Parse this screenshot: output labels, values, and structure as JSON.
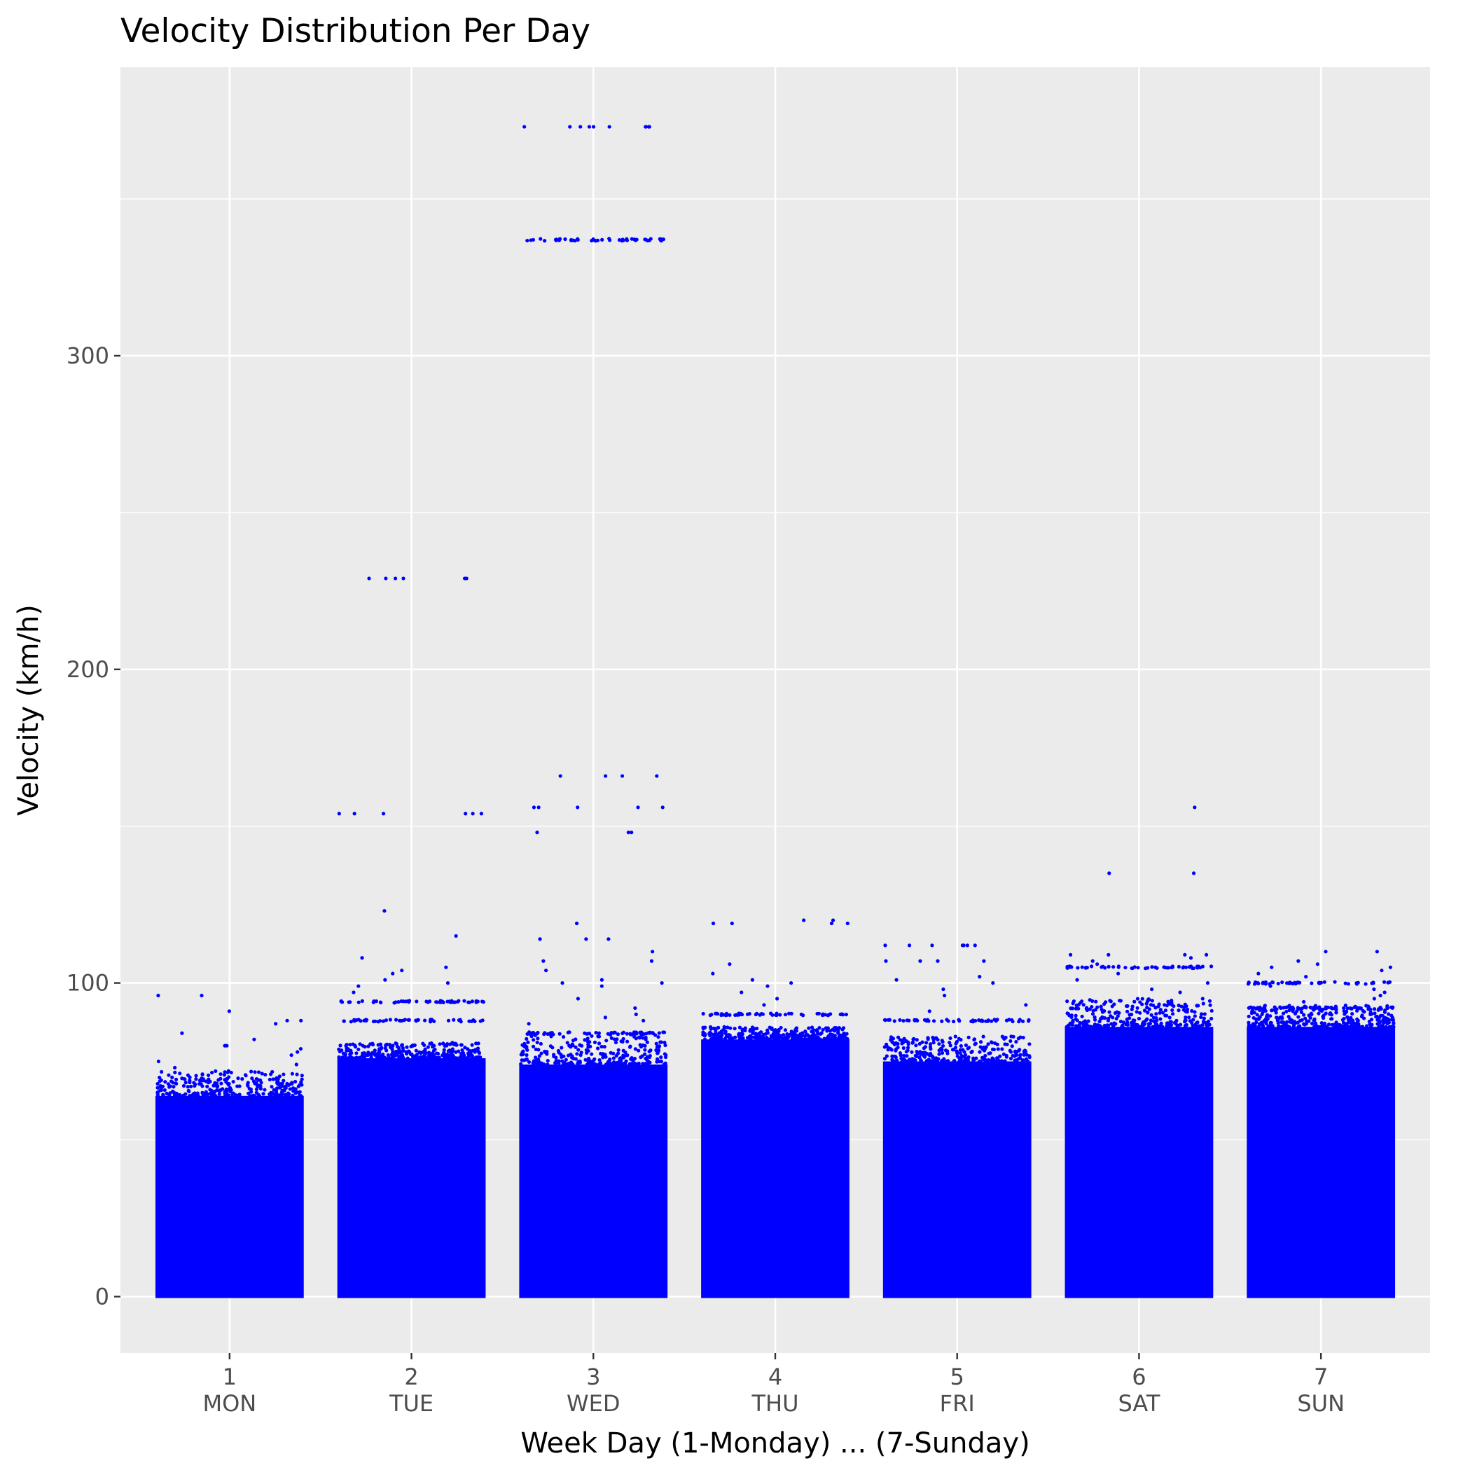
{
  "chart_data": {
    "type": "scatter",
    "title": "Velocity Distribution Per Day",
    "xlabel": "Week Day (1-Monday) ... (7-Sunday)",
    "ylabel": "Velocity (km/h)",
    "ylim": [
      -18,
      392
    ],
    "yticks": [
      0,
      100,
      200,
      300
    ],
    "grid": true,
    "legend": "none",
    "colors": {
      "points": "#0000ff",
      "panel": "#ebebeb",
      "grid": "#ffffff",
      "tick_text": "#4d4d4d"
    },
    "categories": [
      {
        "value": 1,
        "label": "1",
        "day": "MON"
      },
      {
        "value": 2,
        "label": "2",
        "day": "TUE"
      },
      {
        "value": 3,
        "label": "3",
        "day": "WED"
      },
      {
        "value": 4,
        "label": "4",
        "day": "THU"
      },
      {
        "value": 5,
        "label": "5",
        "day": "FRI"
      },
      {
        "value": 6,
        "label": "6",
        "day": "SAT"
      },
      {
        "value": 7,
        "label": "7",
        "day": "SUN"
      }
    ],
    "jitter_width": 0.4,
    "days": [
      {
        "x": 1,
        "dense_max": 64,
        "ragged_max": 72,
        "sparse_points": [
          96,
          96,
          91,
          88,
          88,
          87,
          84,
          82,
          80,
          80,
          79,
          78,
          77,
          75,
          74,
          73
        ]
      },
      {
        "x": 2,
        "dense_max": 76,
        "ragged_max": 81,
        "bands": [
          88,
          94
        ],
        "sparse_points": [
          229,
          229,
          229,
          229,
          229,
          229,
          154,
          154,
          154,
          154,
          154,
          154,
          123,
          115,
          108,
          105,
          104,
          103,
          101,
          100,
          99,
          97
        ]
      },
      {
        "x": 3,
        "dense_max": 74,
        "ragged_max": 84,
        "bands": [
          84,
          337
        ],
        "sparse_points": [
          373,
          373,
          373,
          373,
          373,
          373,
          373,
          373,
          373,
          373,
          166,
          166,
          166,
          166,
          156,
          156,
          156,
          156,
          156,
          148,
          148,
          148,
          119,
          114,
          114,
          114,
          110,
          107,
          107,
          104,
          101,
          100,
          100,
          99,
          95,
          92,
          90,
          89,
          88,
          87
        ]
      },
      {
        "x": 4,
        "dense_max": 82,
        "ragged_max": 86,
        "bands": [
          90
        ],
        "sparse_points": [
          120,
          120,
          119,
          119,
          119,
          119,
          106,
          103,
          101,
          100,
          99,
          97,
          95,
          93
        ]
      },
      {
        "x": 5,
        "dense_max": 75,
        "ragged_max": 83,
        "bands": [
          88
        ],
        "sparse_points": [
          112,
          112,
          112,
          112,
          112,
          112,
          112,
          107,
          107,
          107,
          107,
          102,
          101,
          100,
          98,
          96,
          93,
          91
        ]
      },
      {
        "x": 6,
        "dense_max": 86,
        "ragged_max": 95,
        "bands": [
          105
        ],
        "sparse_points": [
          156,
          135,
          135,
          109,
          109,
          109,
          109,
          108,
          107,
          106,
          103,
          101,
          100,
          98,
          97
        ]
      },
      {
        "x": 7,
        "dense_max": 86,
        "ragged_max": 93,
        "bands": [
          100,
          92
        ],
        "sparse_points": [
          110,
          110,
          107,
          106,
          105,
          105,
          104,
          103,
          102,
          99,
          98,
          97,
          96,
          95,
          94
        ]
      }
    ]
  }
}
